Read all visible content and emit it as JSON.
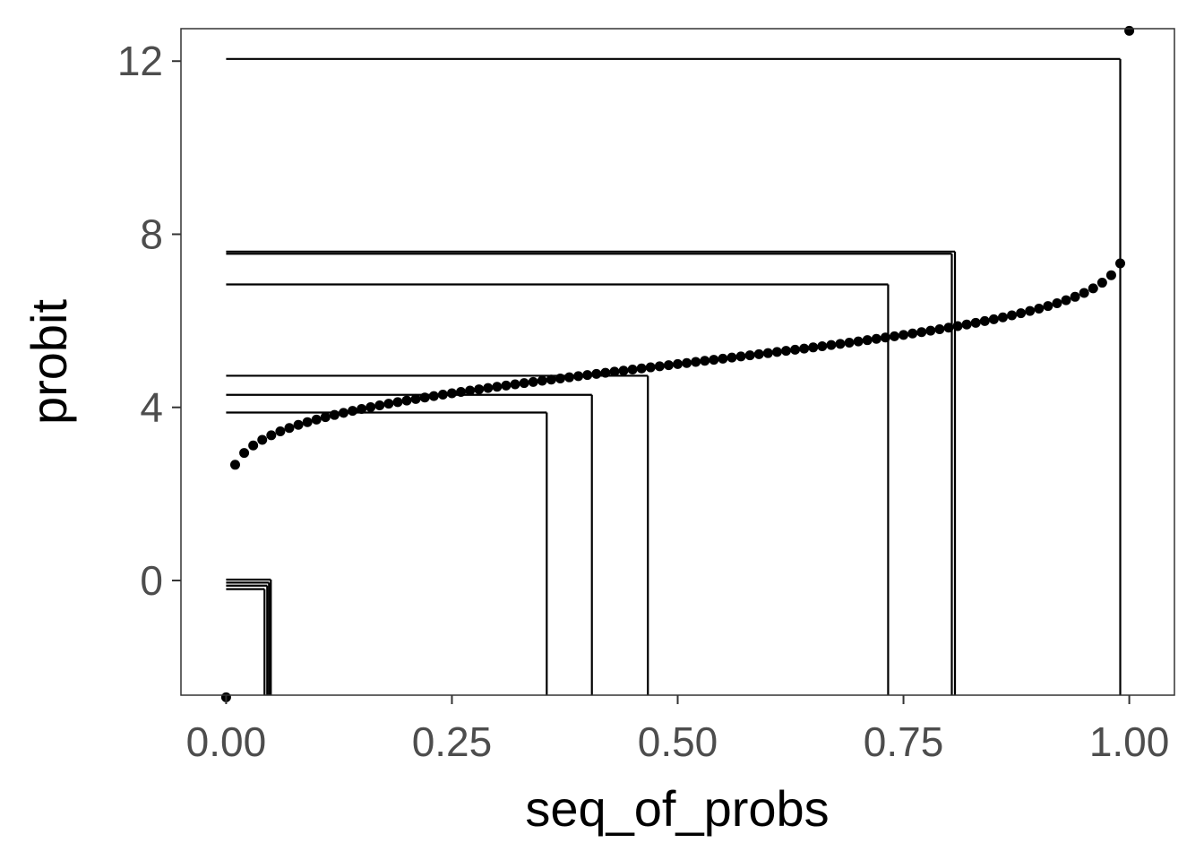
{
  "chart_data": {
    "type": "scatter",
    "title": "",
    "xlabel": "seq_of_probs",
    "ylabel": "probit",
    "xlim": [
      -0.05,
      1.05
    ],
    "ylim": [
      -2.65,
      12.75
    ],
    "x_ticks": [
      0.0,
      0.25,
      0.5,
      0.75,
      1.0
    ],
    "x_tick_labels": [
      "0.00",
      "0.25",
      "0.50",
      "0.75",
      "1.00"
    ],
    "y_ticks": [
      0,
      4,
      8,
      12
    ],
    "y_tick_labels": [
      "0",
      "4",
      "8",
      "12"
    ],
    "grid": false,
    "panel_border": true,
    "point_color": "#000000",
    "line_color": "#000000",
    "series": [
      {
        "type": "points",
        "x_from": 0.0,
        "x_to": 1.0,
        "x_step": 0.01,
        "curve": "qnorm(x) + 5, clamped to [-2.7, 12.7]"
      }
    ],
    "guide_lines": [
      {
        "x": 0.0425,
        "y": -0.2
      },
      {
        "x": 0.0455,
        "y": -0.12
      },
      {
        "x": 0.0475,
        "y": -0.05
      },
      {
        "x": 0.0495,
        "y": 0.02
      },
      {
        "x": 0.355,
        "y": 3.88
      },
      {
        "x": 0.405,
        "y": 4.29
      },
      {
        "x": 0.467,
        "y": 4.73
      },
      {
        "x": 0.733,
        "y": 6.84
      },
      {
        "x": 0.8035,
        "y": 7.55
      },
      {
        "x": 0.807,
        "y": 7.6
      },
      {
        "x": 0.99,
        "y": 12.05
      }
    ]
  }
}
